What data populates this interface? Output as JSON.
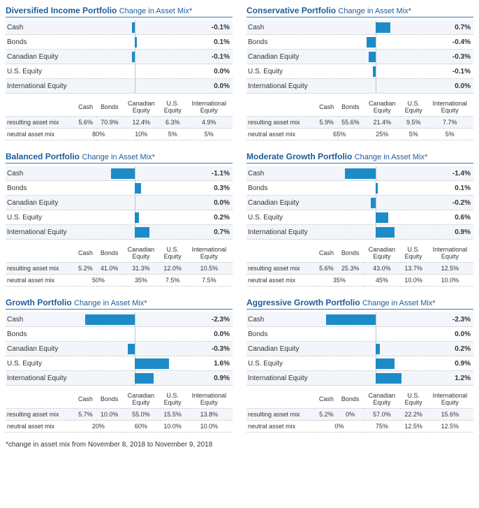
{
  "footnote": "*change in asset mix from November 8, 2018 to November 9, 2018",
  "subtitle": "Change in Asset Mix*",
  "bar_scale_percent_per_halfwidth": 3.0,
  "colors": {
    "brand": "#1d5b99",
    "bar": "#1d8bc8",
    "row_alt": "#f2f6fa",
    "grid_dotted": "#c0c0c0",
    "centerline": "#b8c5d0"
  },
  "categories": [
    "Cash",
    "Bonds",
    "Canadian Equity",
    "U.S. Equity",
    "International Equity"
  ],
  "table_row_labels": [
    "resulting asset mix",
    "neutral asset mix"
  ],
  "table_col_labels": [
    "Cash",
    "Bonds",
    "Canadian Equity",
    "U.S. Equity",
    "International Equity"
  ],
  "portfolios": [
    {
      "name": "Diversified Income Portfolio",
      "changes": [
        -0.1,
        0.1,
        -0.1,
        0.0,
        0.0
      ],
      "resulting": [
        "5.6%",
        "70.9%",
        "12.4%",
        "6.3%",
        "4.9%"
      ],
      "neutral": [
        {
          "span": 2,
          "text": "80%"
        },
        "10%",
        "5%",
        "5%"
      ]
    },
    {
      "name": "Conservative Portfolio",
      "changes": [
        0.7,
        -0.4,
        -0.3,
        -0.1,
        0.0
      ],
      "resulting": [
        "5.9%",
        "55.6%",
        "21.4%",
        "9.5%",
        "7.7%"
      ],
      "neutral": [
        {
          "span": 2,
          "text": "65%"
        },
        "25%",
        "5%",
        "5%"
      ]
    },
    {
      "name": "Balanced Portfolio",
      "changes": [
        -1.1,
        0.3,
        0.0,
        0.2,
        0.7
      ],
      "resulting": [
        "5.2%",
        "41.0%",
        "31.3%",
        "12.0%",
        "10.5%"
      ],
      "neutral": [
        {
          "span": 2,
          "text": "50%"
        },
        "35%",
        "7.5%",
        "7.5%"
      ]
    },
    {
      "name": "Moderate Growth Portfolio",
      "changes": [
        -1.4,
        0.1,
        -0.2,
        0.6,
        0.9
      ],
      "resulting": [
        "5.6%",
        "25.3%",
        "43.0%",
        "13.7%",
        "12.5%"
      ],
      "neutral": [
        {
          "span": 2,
          "text": "35%"
        },
        "45%",
        "10.0%",
        "10.0%"
      ]
    },
    {
      "name": "Growth Portfolio",
      "changes": [
        -2.3,
        0.0,
        -0.3,
        1.6,
        0.9
      ],
      "resulting": [
        "5.7%",
        "10.0%",
        "55.0%",
        "15.5%",
        "13.8%"
      ],
      "neutral": [
        {
          "span": 2,
          "text": "20%"
        },
        "60%",
        "10.0%",
        "10.0%"
      ]
    },
    {
      "name": "Aggressive Growth Portfolio",
      "changes": [
        -2.3,
        0.0,
        0.2,
        0.9,
        1.2
      ],
      "resulting": [
        "5.2%",
        "0%",
        "57.0%",
        "22.2%",
        "15.6%"
      ],
      "neutral": [
        {
          "span": 2,
          "text": "0%"
        },
        "75%",
        "12.5%",
        "12.5%"
      ]
    }
  ]
}
